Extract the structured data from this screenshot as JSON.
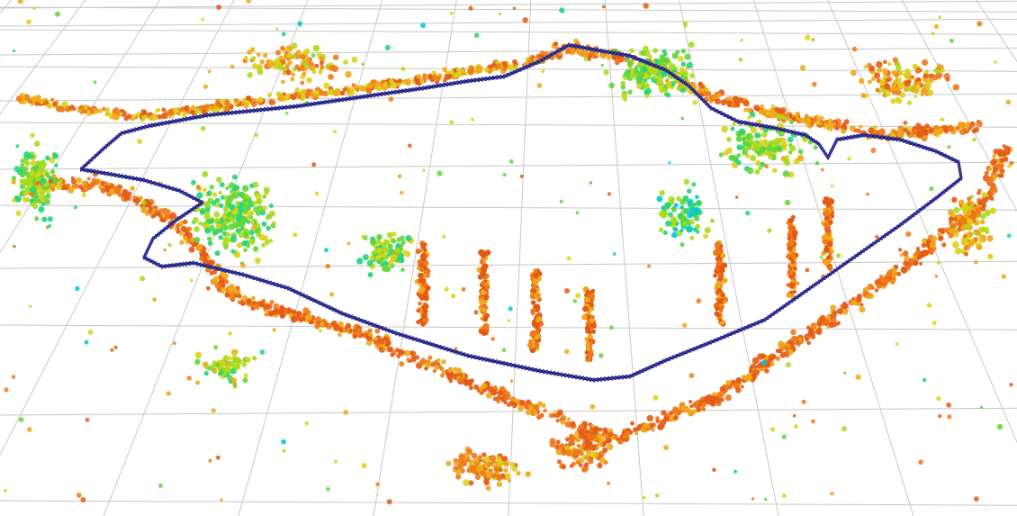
{
  "viewer": {
    "background_color": "#ffffff",
    "grid_color": "#c8c8c8",
    "trajectory_color": "#1a1a7a",
    "trajectory_marker_color": "#3a3a9a",
    "point_colormap": [
      "#00c8d8",
      "#22d47a",
      "#5fd63a",
      "#a6dc1c",
      "#dcd21a",
      "#f0a81a",
      "#ee7a1a",
      "#e45a14"
    ]
  }
}
